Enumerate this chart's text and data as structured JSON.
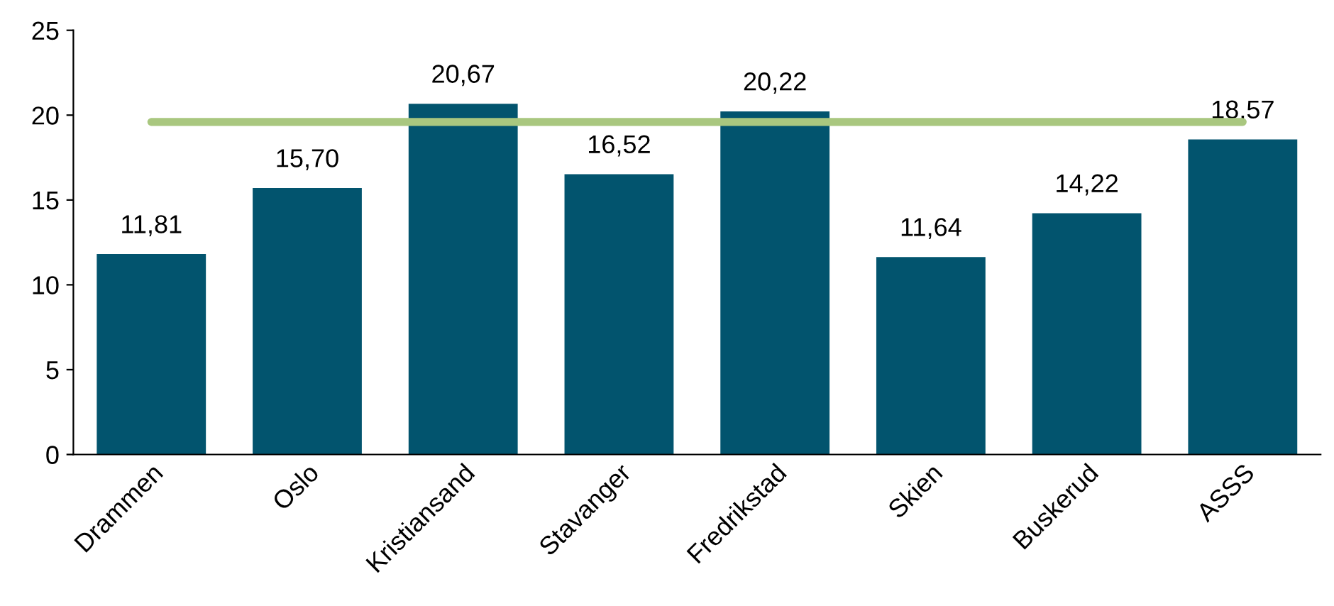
{
  "chart_data": {
    "type": "bar",
    "categories": [
      "Drammen",
      "Oslo",
      "Kristiansand",
      "Stavanger",
      "Fredrikstad",
      "Skien",
      "Buskerud",
      "ASSS"
    ],
    "series": [
      {
        "color": "#02546e",
        "values": [
          11.81,
          15.7,
          20.67,
          16.52,
          20.22,
          11.64,
          14.22,
          18.57
        ],
        "value_labels": [
          "11,81",
          "15,70",
          "20,67",
          "16,52",
          "20,22",
          "11,64",
          "14,22",
          "18,57"
        ]
      },
      {
        "type": "line",
        "color": "#a9c77f",
        "values": [
          19.6,
          19.6,
          19.6,
          19.6,
          19.6,
          19.6,
          19.6,
          19.6
        ]
      }
    ],
    "ylim": [
      0,
      25
    ],
    "yticks": [
      0,
      5,
      10,
      15,
      20,
      25
    ],
    "grid": false,
    "legend": false
  }
}
